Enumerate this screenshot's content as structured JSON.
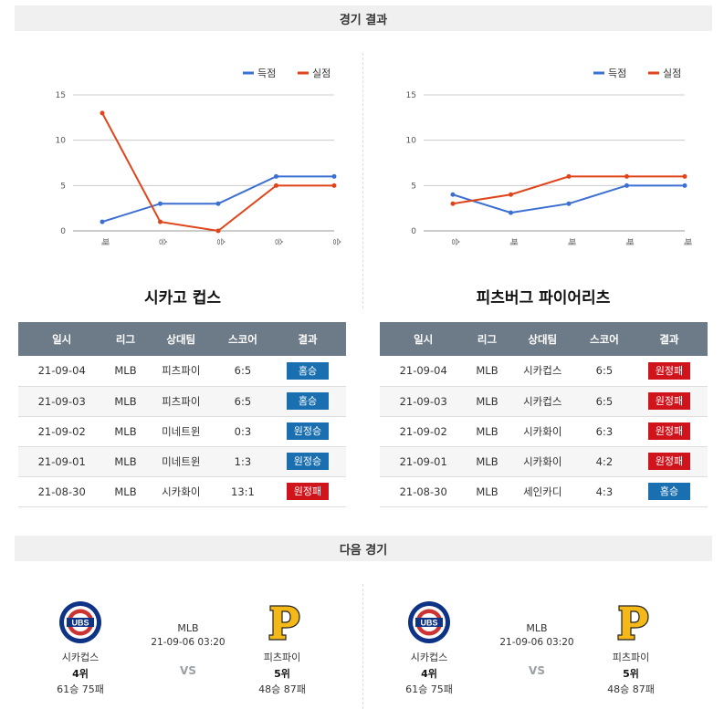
{
  "sections": {
    "results_title": "경기 결과",
    "next_title": "다음 경기"
  },
  "legend": {
    "scored": "득점",
    "allowed": "실점",
    "colors": {
      "scored": "#3b6fd1",
      "allowed": "#e0441a"
    }
  },
  "chart_data": [
    {
      "type": "line",
      "categories": [
        "패",
        "승",
        "승",
        "승",
        "승"
      ],
      "ylim": [
        0,
        15
      ],
      "yticks": [
        0,
        5,
        10,
        15
      ],
      "grid": true,
      "legend_position": "top-right",
      "series": [
        {
          "name": "득점",
          "color": "#3b6fd1",
          "values": [
            1,
            3,
            3,
            6,
            6
          ]
        },
        {
          "name": "실점",
          "color": "#e0441a",
          "values": [
            13,
            1,
            0,
            5,
            5
          ]
        }
      ]
    },
    {
      "type": "line",
      "categories": [
        "승",
        "패",
        "패",
        "패",
        "패"
      ],
      "ylim": [
        0,
        15
      ],
      "yticks": [
        0,
        5,
        10,
        15
      ],
      "grid": true,
      "legend_position": "top-right",
      "series": [
        {
          "name": "득점",
          "color": "#3b6fd1",
          "values": [
            4,
            2,
            3,
            5,
            5
          ]
        },
        {
          "name": "실점",
          "color": "#e0441a",
          "values": [
            3,
            4,
            6,
            6,
            6
          ]
        }
      ]
    }
  ],
  "tables": {
    "headers": [
      "일시",
      "리그",
      "상대팀",
      "스코어",
      "결과"
    ],
    "left": {
      "team": "시카고 컵스",
      "rows": [
        {
          "date": "21-09-04",
          "league": "MLB",
          "opponent": "피츠파이",
          "score": "6:5",
          "result": "홈승",
          "type": "win"
        },
        {
          "date": "21-09-03",
          "league": "MLB",
          "opponent": "피츠파이",
          "score": "6:5",
          "result": "홈승",
          "type": "win"
        },
        {
          "date": "21-09-02",
          "league": "MLB",
          "opponent": "미네트윈",
          "score": "0:3",
          "result": "원정승",
          "type": "win"
        },
        {
          "date": "21-09-01",
          "league": "MLB",
          "opponent": "미네트윈",
          "score": "1:3",
          "result": "원정승",
          "type": "win"
        },
        {
          "date": "21-08-30",
          "league": "MLB",
          "opponent": "시카화이",
          "score": "13:1",
          "result": "원정패",
          "type": "loss"
        }
      ]
    },
    "right": {
      "team": "피츠버그 파이어리츠",
      "rows": [
        {
          "date": "21-09-04",
          "league": "MLB",
          "opponent": "시카컵스",
          "score": "6:5",
          "result": "원정패",
          "type": "loss"
        },
        {
          "date": "21-09-03",
          "league": "MLB",
          "opponent": "시카컵스",
          "score": "6:5",
          "result": "원정패",
          "type": "loss"
        },
        {
          "date": "21-09-02",
          "league": "MLB",
          "opponent": "시카화이",
          "score": "6:3",
          "result": "원정패",
          "type": "loss"
        },
        {
          "date": "21-09-01",
          "league": "MLB",
          "opponent": "시카화이",
          "score": "4:2",
          "result": "원정패",
          "type": "loss"
        },
        {
          "date": "21-08-30",
          "league": "MLB",
          "opponent": "세인카디",
          "score": "4:3",
          "result": "홈승",
          "type": "win"
        }
      ]
    }
  },
  "next_games": [
    {
      "league": "MLB",
      "datetime": "21-09-06 03:20",
      "vs": "VS",
      "home": {
        "name": "시카컵스",
        "rank": "4위",
        "record": "61승 75패",
        "logo_icon": "cubs-logo-icon"
      },
      "away": {
        "name": "피츠파이",
        "rank": "5위",
        "record": "48승 87패",
        "logo_icon": "pirates-logo-icon"
      }
    },
    {
      "league": "MLB",
      "datetime": "21-09-06 03:20",
      "vs": "VS",
      "home": {
        "name": "시카컵스",
        "rank": "4위",
        "record": "61승 75패",
        "logo_icon": "cubs-logo-icon"
      },
      "away": {
        "name": "피츠파이",
        "rank": "5위",
        "record": "48승 87패",
        "logo_icon": "pirates-logo-icon"
      }
    }
  ]
}
